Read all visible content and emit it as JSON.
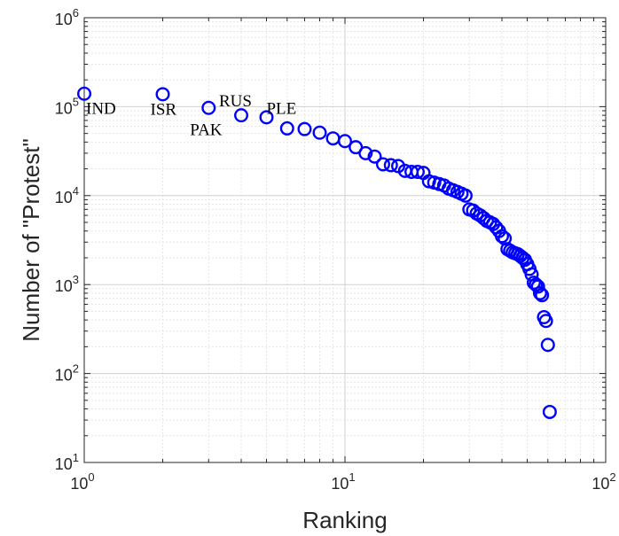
{
  "chart_data": {
    "type": "scatter",
    "title": "",
    "xlabel": "Ranking",
    "ylabel": "Number of \"Protest\"",
    "xscale": "log",
    "yscale": "log",
    "xlim": [
      1,
      100
    ],
    "ylim": [
      10,
      1000000
    ],
    "grid": true,
    "grid_minor": true,
    "marker": "open circle",
    "marker_color": "#0000ff",
    "x_ticks": [
      {
        "base": "10",
        "exp": "0"
      },
      {
        "base": "10",
        "exp": "1"
      },
      {
        "base": "10",
        "exp": "2"
      }
    ],
    "y_ticks": [
      {
        "base": "10",
        "exp": "1"
      },
      {
        "base": "10",
        "exp": "2"
      },
      {
        "base": "10",
        "exp": "3"
      },
      {
        "base": "10",
        "exp": "4"
      },
      {
        "base": "10",
        "exp": "5"
      },
      {
        "base": "10",
        "exp": "6"
      }
    ],
    "annotations": [
      {
        "text": "IND",
        "x": 1
      },
      {
        "text": "ISR",
        "x": 2
      },
      {
        "text": "PAK",
        "x": 3
      },
      {
        "text": "RUS",
        "x": 4
      },
      {
        "text": "PLE",
        "x": 5
      }
    ],
    "points": [
      [
        1,
        140000
      ],
      [
        2,
        138000
      ],
      [
        3,
        97000
      ],
      [
        4,
        80000
      ],
      [
        5,
        76000
      ],
      [
        6,
        57000
      ],
      [
        7,
        56000
      ],
      [
        8,
        51000
      ],
      [
        9,
        44000
      ],
      [
        10,
        41000
      ],
      [
        11,
        35000
      ],
      [
        12,
        30000
      ],
      [
        13,
        27500
      ],
      [
        14,
        22500
      ],
      [
        15,
        22000
      ],
      [
        16,
        21500
      ],
      [
        17,
        19000
      ],
      [
        18,
        18500
      ],
      [
        19,
        18500
      ],
      [
        20,
        18000
      ],
      [
        21,
        14500
      ],
      [
        22,
        14000
      ],
      [
        23,
        13500
      ],
      [
        24,
        13000
      ],
      [
        25,
        12000
      ],
      [
        26,
        11500
      ],
      [
        27,
        11000
      ],
      [
        28,
        10500
      ],
      [
        29,
        10000
      ],
      [
        30,
        7000
      ],
      [
        31,
        6800
      ],
      [
        32,
        6300
      ],
      [
        33,
        6000
      ],
      [
        34,
        5600
      ],
      [
        35,
        5200
      ],
      [
        36,
        5000
      ],
      [
        37,
        4800
      ],
      [
        38,
        4400
      ],
      [
        39,
        4000
      ],
      [
        40,
        3500
      ],
      [
        41,
        3300
      ],
      [
        42,
        2500
      ],
      [
        43,
        2400
      ],
      [
        44,
        2300
      ],
      [
        45,
        2250
      ],
      [
        46,
        2200
      ],
      [
        47,
        2100
      ],
      [
        48,
        2000
      ],
      [
        49,
        1900
      ],
      [
        50,
        1700
      ],
      [
        51,
        1500
      ],
      [
        52,
        1300
      ],
      [
        53,
        1050
      ],
      [
        54,
        1000
      ],
      [
        55,
        950
      ],
      [
        56,
        800
      ],
      [
        57,
        760
      ],
      [
        58,
        430
      ],
      [
        59,
        390
      ],
      [
        60,
        210
      ],
      [
        61,
        37
      ]
    ]
  }
}
